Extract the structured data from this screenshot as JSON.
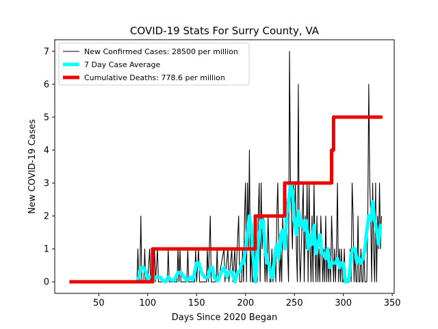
{
  "chart_data": {
    "type": "line",
    "title": "COVID-19 Stats For Surry County, VA",
    "xlabel": "Days Since 2020 Began",
    "ylabel": "New COVID-19 Cases",
    "xlim": [
      5,
      352
    ],
    "ylim": [
      -0.35,
      7.35
    ],
    "xticks": [
      50,
      100,
      150,
      200,
      250,
      300,
      350
    ],
    "yticks": [
      0,
      1,
      2,
      3,
      4,
      5,
      6,
      7
    ],
    "grid": false,
    "legend_position": "top-left",
    "series": [
      {
        "name": "New Confirmed Cases: 28500 per million",
        "color": "#000000",
        "style": "thin",
        "points": [
          [
            20,
            0
          ],
          [
            89,
            0
          ],
          [
            90,
            1
          ],
          [
            91,
            0
          ],
          [
            92,
            0
          ],
          [
            93,
            2
          ],
          [
            94,
            0
          ],
          [
            96,
            0
          ],
          [
            97,
            1
          ],
          [
            98,
            0
          ],
          [
            100,
            0
          ],
          [
            102,
            1
          ],
          [
            103,
            0
          ],
          [
            106,
            0
          ],
          [
            107,
            1
          ],
          [
            108,
            0
          ],
          [
            110,
            1
          ],
          [
            111,
            0
          ],
          [
            120,
            0
          ],
          [
            121,
            1
          ],
          [
            122,
            0
          ],
          [
            130,
            0
          ],
          [
            131,
            1
          ],
          [
            132,
            0
          ],
          [
            133,
            1
          ],
          [
            134,
            0
          ],
          [
            140,
            0
          ],
          [
            141,
            1
          ],
          [
            142,
            0
          ],
          [
            148,
            0
          ],
          [
            149,
            1
          ],
          [
            150,
            0
          ],
          [
            152,
            1
          ],
          [
            153,
            0
          ],
          [
            160,
            0
          ],
          [
            161,
            1
          ],
          [
            162,
            0
          ],
          [
            164,
            2
          ],
          [
            165,
            0
          ],
          [
            170,
            0
          ],
          [
            171,
            1
          ],
          [
            172,
            0
          ],
          [
            178,
            1
          ],
          [
            179,
            0
          ],
          [
            182,
            1
          ],
          [
            183,
            0
          ],
          [
            186,
            1
          ],
          [
            187,
            0
          ],
          [
            189,
            1
          ],
          [
            190,
            0
          ],
          [
            193,
            2
          ],
          [
            194,
            0
          ],
          [
            196,
            0
          ],
          [
            197,
            1
          ],
          [
            198,
            0
          ],
          [
            199,
            2
          ],
          [
            200,
            3
          ],
          [
            201,
            0
          ],
          [
            202,
            3
          ],
          [
            203,
            1
          ],
          [
            204,
            4
          ],
          [
            205,
            0
          ],
          [
            206,
            1
          ],
          [
            207,
            0
          ],
          [
            208,
            0
          ],
          [
            209,
            2
          ],
          [
            210,
            0
          ],
          [
            211,
            1
          ],
          [
            212,
            0
          ],
          [
            213,
            2
          ],
          [
            214,
            3
          ],
          [
            215,
            0
          ],
          [
            216,
            3
          ],
          [
            217,
            1
          ],
          [
            218,
            2
          ],
          [
            219,
            1
          ],
          [
            220,
            0
          ],
          [
            221,
            1
          ],
          [
            222,
            0
          ],
          [
            223,
            2
          ],
          [
            224,
            1
          ],
          [
            225,
            0
          ],
          [
            226,
            0
          ],
          [
            227,
            1
          ],
          [
            228,
            0
          ],
          [
            230,
            1
          ],
          [
            231,
            0
          ],
          [
            232,
            2
          ],
          [
            233,
            3
          ],
          [
            234,
            1
          ],
          [
            235,
            0
          ],
          [
            236,
            1
          ],
          [
            237,
            0
          ],
          [
            238,
            2
          ],
          [
            239,
            1
          ],
          [
            240,
            1
          ],
          [
            241,
            3
          ],
          [
            242,
            2
          ],
          [
            243,
            1
          ],
          [
            244,
            0
          ],
          [
            245,
            7
          ],
          [
            246,
            3
          ],
          [
            247,
            2
          ],
          [
            248,
            1
          ],
          [
            249,
            3
          ],
          [
            250,
            2
          ],
          [
            251,
            3
          ],
          [
            252,
            1
          ],
          [
            253,
            0
          ],
          [
            254,
            6
          ],
          [
            255,
            1
          ],
          [
            256,
            0
          ],
          [
            257,
            1
          ],
          [
            258,
            2
          ],
          [
            259,
            3
          ],
          [
            260,
            0
          ],
          [
            261,
            2
          ],
          [
            262,
            1
          ],
          [
            263,
            3
          ],
          [
            264,
            0
          ],
          [
            265,
            3
          ],
          [
            266,
            1
          ],
          [
            267,
            0
          ],
          [
            268,
            2
          ],
          [
            269,
            0
          ],
          [
            270,
            3
          ],
          [
            271,
            1
          ],
          [
            272,
            0
          ],
          [
            273,
            2
          ],
          [
            274,
            0
          ],
          [
            275,
            1
          ],
          [
            276,
            0
          ],
          [
            277,
            2
          ],
          [
            278,
            1
          ],
          [
            279,
            0
          ],
          [
            280,
            1
          ],
          [
            281,
            0
          ],
          [
            282,
            2
          ],
          [
            283,
            0
          ],
          [
            284,
            1
          ],
          [
            285,
            0
          ],
          [
            286,
            1
          ],
          [
            287,
            0
          ],
          [
            288,
            2
          ],
          [
            289,
            1
          ],
          [
            290,
            0
          ],
          [
            291,
            1
          ],
          [
            292,
            0
          ],
          [
            293,
            1
          ],
          [
            294,
            3
          ],
          [
            295,
            0
          ],
          [
            296,
            1
          ],
          [
            297,
            0
          ],
          [
            298,
            1
          ],
          [
            299,
            0
          ],
          [
            300,
            0
          ],
          [
            301,
            1
          ],
          [
            302,
            0
          ],
          [
            306,
            0
          ],
          [
            307,
            1
          ],
          [
            308,
            0
          ],
          [
            309,
            3
          ],
          [
            310,
            2
          ],
          [
            311,
            0
          ],
          [
            312,
            1
          ],
          [
            313,
            0
          ],
          [
            314,
            0
          ],
          [
            315,
            2
          ],
          [
            316,
            0
          ],
          [
            317,
            0
          ],
          [
            318,
            1
          ],
          [
            319,
            0
          ],
          [
            320,
            0
          ],
          [
            321,
            1
          ],
          [
            322,
            0
          ],
          [
            324,
            0
          ],
          [
            325,
            2
          ],
          [
            326,
            6
          ],
          [
            327,
            3
          ],
          [
            328,
            2
          ],
          [
            329,
            0
          ],
          [
            330,
            3
          ],
          [
            331,
            1
          ],
          [
            332,
            0
          ],
          [
            333,
            3
          ],
          [
            334,
            0
          ],
          [
            335,
            2
          ],
          [
            336,
            1
          ],
          [
            337,
            3
          ],
          [
            338,
            1
          ],
          [
            339,
            2
          ]
        ]
      },
      {
        "name": "7 Day Case Average",
        "color": "#00ffff",
        "style": "thick",
        "points": [
          [
            89,
            0
          ],
          [
            91,
            0.15
          ],
          [
            93,
            0.43
          ],
          [
            96,
            0.43
          ],
          [
            98,
            0.3
          ],
          [
            100,
            0.1
          ],
          [
            102,
            0.15
          ],
          [
            104,
            0.15
          ],
          [
            106,
            0.05
          ],
          [
            108,
            0.14
          ],
          [
            110,
            0.14
          ],
          [
            113,
            0.14
          ],
          [
            115,
            0.05
          ],
          [
            118,
            0.0
          ],
          [
            121,
            0.14
          ],
          [
            124,
            0.05
          ],
          [
            127,
            0.05
          ],
          [
            131,
            0.28
          ],
          [
            134,
            0.28
          ],
          [
            137,
            0.14
          ],
          [
            140,
            0.05
          ],
          [
            143,
            0.14
          ],
          [
            146,
            0.05
          ],
          [
            148,
            0.3
          ],
          [
            150,
            0.57
          ],
          [
            152,
            0.57
          ],
          [
            155,
            0.28
          ],
          [
            158,
            0.14
          ],
          [
            162,
            0.14
          ],
          [
            164,
            0.43
          ],
          [
            166,
            0.43
          ],
          [
            168,
            0.14
          ],
          [
            170,
            0.05
          ],
          [
            172,
            0.05
          ],
          [
            175,
            0.3
          ],
          [
            178,
            0.43
          ],
          [
            181,
            0.14
          ],
          [
            183,
            0.3
          ],
          [
            186,
            0.3
          ],
          [
            189,
            0.0
          ],
          [
            192,
            0.3
          ],
          [
            194,
            0.3
          ],
          [
            196,
            0.57
          ],
          [
            198,
            0.57
          ],
          [
            200,
            1.0
          ],
          [
            202,
            1.5
          ],
          [
            204,
            2.0
          ],
          [
            206,
            1.6
          ],
          [
            208,
            0.71
          ],
          [
            210,
            0.0
          ],
          [
            212,
            0.71
          ],
          [
            214,
            1.43
          ],
          [
            216,
            1.86
          ],
          [
            218,
            1.86
          ],
          [
            220,
            1.0
          ],
          [
            222,
            0.57
          ],
          [
            224,
            0.57
          ],
          [
            226,
            0.14
          ],
          [
            228,
            0.14
          ],
          [
            230,
            0.86
          ],
          [
            232,
            1.14
          ],
          [
            234,
            0.71
          ],
          [
            236,
            1.43
          ],
          [
            238,
            1.57
          ],
          [
            240,
            1.0
          ],
          [
            242,
            2.0
          ],
          [
            244,
            2.43
          ],
          [
            246,
            3.0
          ],
          [
            248,
            2.71
          ],
          [
            250,
            1.86
          ],
          [
            252,
            1.43
          ],
          [
            254,
            2.14
          ],
          [
            256,
            1.71
          ],
          [
            258,
            1.86
          ],
          [
            260,
            1.57
          ],
          [
            262,
            1.86
          ],
          [
            264,
            1.0
          ],
          [
            266,
            1.43
          ],
          [
            268,
            1.14
          ],
          [
            270,
            1.71
          ],
          [
            272,
            0.86
          ],
          [
            274,
            1.14
          ],
          [
            276,
            1.43
          ],
          [
            278,
            0.86
          ],
          [
            280,
            0.86
          ],
          [
            282,
            0.71
          ],
          [
            284,
            1.0
          ],
          [
            286,
            0.43
          ],
          [
            288,
            0.57
          ],
          [
            290,
            0.57
          ],
          [
            292,
            0.57
          ],
          [
            294,
            0.71
          ],
          [
            296,
            0.43
          ],
          [
            298,
            0.57
          ],
          [
            300,
            0.57
          ],
          [
            302,
            0.0
          ],
          [
            304,
            0.0
          ],
          [
            306,
            0.14
          ],
          [
            308,
            0.86
          ],
          [
            310,
            1.0
          ],
          [
            312,
            1.0
          ],
          [
            314,
            0.57
          ],
          [
            316,
            0.71
          ],
          [
            318,
            0.57
          ],
          [
            320,
            0.71
          ],
          [
            322,
            1.0
          ],
          [
            324,
            1.57
          ],
          [
            326,
            2.0
          ],
          [
            328,
            1.86
          ],
          [
            330,
            2.43
          ],
          [
            332,
            1.86
          ],
          [
            334,
            1.57
          ],
          [
            336,
            1.14
          ],
          [
            338,
            1.71
          ],
          [
            339,
            1.71
          ]
        ]
      },
      {
        "name": "Cumulative Deaths: 778.6 per million",
        "color": "#ee0000",
        "style": "thick",
        "points": [
          [
            20,
            0
          ],
          [
            105,
            0
          ],
          [
            105,
            1
          ],
          [
            210,
            1
          ],
          [
            210,
            2
          ],
          [
            240,
            2
          ],
          [
            240,
            3
          ],
          [
            288,
            3
          ],
          [
            288,
            4
          ],
          [
            290,
            4
          ],
          [
            290,
            5
          ],
          [
            340,
            5
          ]
        ]
      }
    ]
  }
}
